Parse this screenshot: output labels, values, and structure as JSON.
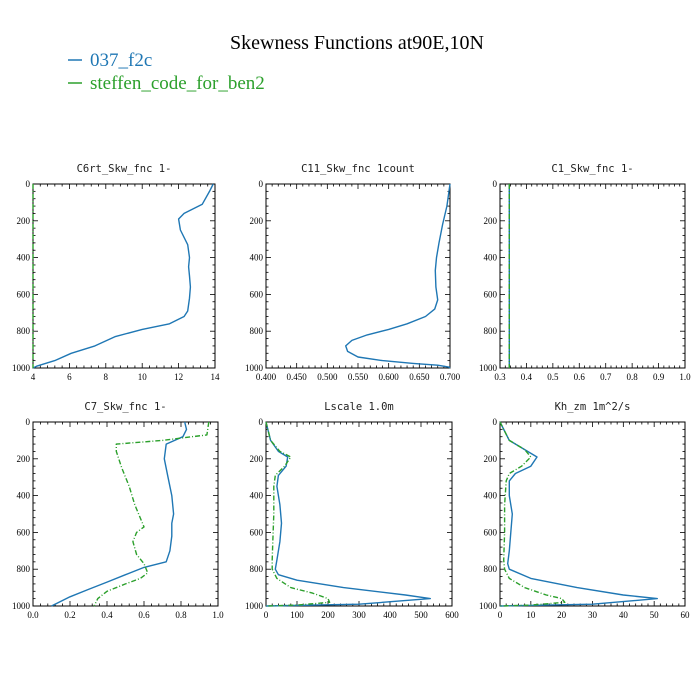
{
  "figure": {
    "title": "Skewness Functions at90E,10N",
    "legend": [
      {
        "name": "037_f2c",
        "color": "#1f77b4"
      },
      {
        "name": "steffen_code_for_ben2",
        "color": "#2ca02c"
      }
    ]
  },
  "chart_data": [
    {
      "type": "line",
      "title": "C6rt_Skw_fnc   1-",
      "xlim": [
        4,
        14
      ],
      "ylim": [
        1000,
        0
      ],
      "xticks": [
        "4",
        "6",
        "8",
        "10",
        "12",
        "14"
      ],
      "yticks": [
        "0",
        "200",
        "400",
        "600",
        "800",
        "1000"
      ],
      "series": [
        {
          "name": "037_f2c",
          "color": "#1f77b4",
          "dashed": false,
          "x": [
            13.9,
            13.7,
            13.3,
            12.3,
            12.0,
            12.1,
            12.5,
            12.6,
            12.55,
            12.6,
            12.65,
            12.6,
            12.5,
            12.3,
            11.5,
            10.0,
            8.5,
            7.4,
            6.1,
            5.2,
            4.2,
            4.0
          ],
          "y": [
            0,
            40,
            110,
            160,
            190,
            250,
            330,
            400,
            450,
            500,
            560,
            620,
            690,
            720,
            760,
            790,
            830,
            880,
            920,
            960,
            990,
            1000
          ]
        },
        {
          "name": "steffen_code_for_ben2",
          "color": "#2ca02c",
          "dashed": true,
          "x": [
            4.0,
            4.0
          ],
          "y": [
            0,
            1000
          ]
        }
      ]
    },
    {
      "type": "line",
      "title": "C11_Skw_fnc   1count",
      "xlim": [
        0.4,
        0.7
      ],
      "ylim": [
        1000,
        0
      ],
      "xticks": [
        "0.400",
        "0.450",
        "0.500",
        "0.550",
        "0.600",
        "0.650",
        "0.700"
      ],
      "yticks": [
        "0",
        "200",
        "400",
        "600",
        "800",
        "1000"
      ],
      "series": [
        {
          "name": "037_f2c",
          "color": "#1f77b4",
          "dashed": false,
          "x": [
            0.7,
            0.695,
            0.688,
            0.682,
            0.678,
            0.676,
            0.677,
            0.68,
            0.675,
            0.66,
            0.63,
            0.6,
            0.565,
            0.54,
            0.53,
            0.533,
            0.55,
            0.59,
            0.64,
            0.68,
            0.698,
            0.7
          ],
          "y": [
            0,
            120,
            220,
            320,
            400,
            470,
            560,
            630,
            680,
            720,
            760,
            790,
            820,
            850,
            880,
            910,
            940,
            960,
            975,
            985,
            995,
            1000
          ]
        }
      ]
    },
    {
      "type": "line",
      "title": "C1_Skw_fnc   1-",
      "xlim": [
        0.3,
        1.0
      ],
      "ylim": [
        1000,
        0
      ],
      "xticks": [
        "0.3",
        "0.4",
        "0.5",
        "0.6",
        "0.7",
        "0.8",
        "0.9",
        "1.0"
      ],
      "yticks": [
        "0",
        "200",
        "400",
        "600",
        "800",
        "1000"
      ],
      "series": [
        {
          "name": "037_f2c",
          "color": "#1f77b4",
          "dashed": false,
          "x": [
            0.335,
            0.335
          ],
          "y": [
            0,
            1000
          ]
        },
        {
          "name": "steffen_code_for_ben2",
          "color": "#2ca02c",
          "dashed": true,
          "x": [
            0.335,
            0.335
          ],
          "y": [
            0,
            1000
          ]
        }
      ]
    },
    {
      "type": "line",
      "title": "C7_Skw_fnc   1-",
      "xlim": [
        0.0,
        1.0
      ],
      "ylim": [
        1000,
        0
      ],
      "xticks": [
        "0.0",
        "0.2",
        "0.4",
        "0.6",
        "0.8",
        "1.0"
      ],
      "yticks": [
        "0",
        "200",
        "400",
        "600",
        "800",
        "1000"
      ],
      "series": [
        {
          "name": "037_f2c",
          "color": "#1f77b4",
          "dashed": false,
          "x": [
            0.82,
            0.83,
            0.81,
            0.72,
            0.71,
            0.73,
            0.75,
            0.76,
            0.75,
            0.75,
            0.74,
            0.72,
            0.6,
            0.5,
            0.4,
            0.3,
            0.2,
            0.1
          ],
          "y": [
            0,
            40,
            80,
            120,
            200,
            300,
            400,
            500,
            550,
            620,
            700,
            760,
            790,
            830,
            870,
            910,
            950,
            1000
          ]
        },
        {
          "name": "steffen_code_for_ben2",
          "color": "#2ca02c",
          "dashed": true,
          "x": [
            0.95,
            0.94,
            0.7,
            0.45,
            0.45,
            0.48,
            0.52,
            0.55,
            0.6,
            0.56,
            0.54,
            0.56,
            0.6,
            0.62,
            0.58,
            0.5,
            0.4,
            0.35,
            0.33
          ],
          "y": [
            0,
            70,
            100,
            120,
            160,
            250,
            350,
            450,
            570,
            600,
            650,
            720,
            770,
            820,
            850,
            880,
            920,
            960,
            1000
          ]
        }
      ]
    },
    {
      "type": "line",
      "title": "Lscale   1.0m",
      "xlim": [
        0,
        600
      ],
      "ylim": [
        1000,
        0
      ],
      "xticks": [
        "0",
        "100",
        "200",
        "300",
        "400",
        "500",
        "600"
      ],
      "yticks": [
        "0",
        "200",
        "400",
        "600",
        "800",
        "1000"
      ],
      "series": [
        {
          "name": "037_f2c",
          "color": "#1f77b4",
          "dashed": false,
          "x": [
            0,
            15,
            40,
            70,
            65,
            40,
            35,
            45,
            50,
            45,
            35,
            30,
            40,
            100,
            250,
            450,
            530,
            300,
            0
          ],
          "y": [
            0,
            100,
            160,
            190,
            240,
            290,
            350,
            450,
            550,
            650,
            750,
            800,
            830,
            860,
            900,
            940,
            960,
            990,
            1000
          ]
        },
        {
          "name": "steffen_code_for_ben2",
          "color": "#2ca02c",
          "dashed": true,
          "x": [
            0,
            15,
            45,
            80,
            60,
            30,
            25,
            25,
            22,
            20,
            20,
            35,
            80,
            150,
            200,
            205,
            100,
            0
          ],
          "y": [
            0,
            100,
            160,
            190,
            240,
            290,
            350,
            500,
            650,
            750,
            800,
            850,
            900,
            930,
            960,
            980,
            995,
            1000
          ]
        }
      ]
    },
    {
      "type": "line",
      "title": "Kh_zm   1m^2/s",
      "xlim": [
        0,
        60
      ],
      "ylim": [
        1000,
        0
      ],
      "xticks": [
        "0",
        "10",
        "20",
        "30",
        "40",
        "50",
        "60"
      ],
      "yticks": [
        "0",
        "200",
        "400",
        "600",
        "800",
        "1000"
      ],
      "series": [
        {
          "name": "037_f2c",
          "color": "#1f77b4",
          "dashed": false,
          "x": [
            0,
            3,
            8,
            12,
            10,
            5,
            3,
            3,
            4,
            3.5,
            3,
            2.5,
            3,
            10,
            25,
            40,
            51,
            30,
            0
          ],
          "y": [
            0,
            100,
            150,
            190,
            240,
            280,
            320,
            400,
            500,
            600,
            700,
            770,
            800,
            850,
            900,
            940,
            960,
            990,
            1000
          ]
        },
        {
          "name": "steffen_code_for_ben2",
          "color": "#2ca02c",
          "dashed": true,
          "x": [
            0,
            3,
            8,
            10,
            7,
            3,
            2,
            1.5,
            1.5,
            1.2,
            1.5,
            3,
            8,
            15,
            20,
            21,
            10,
            0
          ],
          "y": [
            0,
            100,
            150,
            190,
            240,
            280,
            320,
            450,
            600,
            750,
            800,
            850,
            900,
            940,
            960,
            980,
            995,
            1000
          ]
        }
      ]
    }
  ]
}
